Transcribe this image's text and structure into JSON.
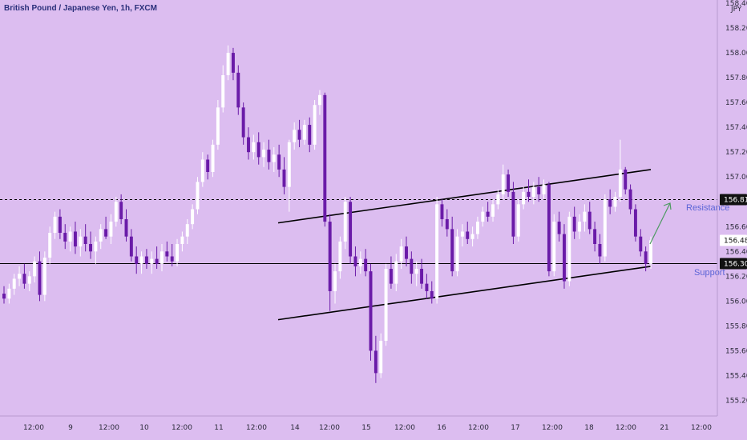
{
  "header": {
    "symbol_title": "British Pound / Japanese Yen, 1h, FXCM",
    "currency": "JPY"
  },
  "colors": {
    "background": "#dcbdf0",
    "bull": "#ffffff",
    "bear": "#6a1ba8",
    "trendline": "#000000",
    "arrow": "#4e9a62",
    "annotation_text": "#5b64d6"
  },
  "chart_data": {
    "type": "candlestick",
    "ylim": [
      155.1,
      158.4
    ],
    "y_ticks": [
      "155.200",
      "155.400",
      "155.600",
      "155.800",
      "156.000",
      "156.200",
      "156.400",
      "156.600",
      "156.800",
      "157.000",
      "157.200",
      "157.400",
      "157.600",
      "157.800",
      "158.000",
      "158.200",
      "158.400"
    ],
    "x_ticks": [
      "12:00",
      "9",
      "12:00",
      "10",
      "12:00",
      "11",
      "12:00",
      "14",
      "12:00",
      "15",
      "12:00",
      "16",
      "12:00",
      "17",
      "12:00",
      "18",
      "12:00",
      "21",
      "12:00"
    ],
    "price_labels": {
      "resistance_level": "156.818",
      "current_price": "156.489",
      "support_level": "156.302"
    },
    "annotations": {
      "resistance": "Resistance",
      "support": "Support"
    },
    "channel": {
      "upper": [
        [
          155.955,
          156.63
        ],
        [
          157.055,
          157.06
        ]
      ],
      "lower": [
        [
          155.955,
          155.85
        ],
        [
          157.055,
          156.28
        ]
      ]
    },
    "levels": {
      "resistance": 156.818,
      "support": 156.302
    },
    "candles": [
      [
        156.06,
        156.12,
        155.98,
        156.02
      ],
      [
        156.02,
        156.14,
        155.98,
        156.1
      ],
      [
        156.1,
        156.22,
        156.05,
        156.18
      ],
      [
        156.18,
        156.28,
        156.12,
        156.22
      ],
      [
        156.22,
        156.3,
        156.1,
        156.14
      ],
      [
        156.14,
        156.24,
        156.08,
        156.2
      ],
      [
        156.2,
        156.36,
        156.15,
        156.32
      ],
      [
        156.32,
        156.4,
        156.0,
        156.05
      ],
      [
        156.05,
        156.4,
        156.0,
        156.35
      ],
      [
        156.35,
        156.6,
        156.3,
        156.55
      ],
      [
        156.55,
        156.72,
        156.5,
        156.68
      ],
      [
        156.68,
        156.74,
        156.5,
        156.55
      ],
      [
        156.55,
        156.62,
        156.42,
        156.48
      ],
      [
        156.48,
        156.6,
        156.4,
        156.56
      ],
      [
        156.56,
        156.64,
        156.38,
        156.44
      ],
      [
        156.44,
        156.58,
        156.36,
        156.52
      ],
      [
        156.52,
        156.62,
        156.4,
        156.46
      ],
      [
        156.46,
        156.56,
        156.34,
        156.4
      ],
      [
        156.4,
        156.52,
        156.3,
        156.48
      ],
      [
        156.48,
        156.62,
        156.42,
        156.58
      ],
      [
        156.58,
        156.68,
        156.5,
        156.52
      ],
      [
        156.52,
        156.7,
        156.46,
        156.64
      ],
      [
        156.64,
        156.84,
        156.6,
        156.8
      ],
      [
        156.8,
        156.86,
        156.62,
        156.66
      ],
      [
        156.66,
        156.74,
        156.48,
        156.52
      ],
      [
        156.52,
        156.58,
        156.32,
        156.36
      ],
      [
        156.36,
        156.44,
        156.22,
        156.3
      ],
      [
        156.3,
        156.4,
        156.22,
        156.36
      ],
      [
        156.36,
        156.42,
        156.26,
        156.3
      ],
      [
        156.3,
        156.4,
        156.22,
        156.34
      ],
      [
        156.34,
        156.44,
        156.26,
        156.3
      ],
      [
        156.3,
        156.46,
        156.24,
        156.4
      ],
      [
        156.4,
        156.48,
        156.32,
        156.36
      ],
      [
        156.36,
        156.46,
        156.28,
        156.32
      ],
      [
        156.32,
        156.5,
        156.28,
        156.46
      ],
      [
        156.46,
        156.56,
        156.4,
        156.52
      ],
      [
        156.52,
        156.66,
        156.46,
        156.62
      ],
      [
        156.62,
        156.78,
        156.58,
        156.74
      ],
      [
        156.74,
        157.0,
        156.7,
        156.96
      ],
      [
        156.96,
        157.2,
        156.92,
        157.14
      ],
      [
        157.14,
        157.18,
        156.98,
        157.04
      ],
      [
        157.04,
        157.3,
        157.0,
        157.26
      ],
      [
        157.26,
        157.62,
        157.22,
        157.56
      ],
      [
        157.56,
        157.9,
        157.52,
        157.82
      ],
      [
        157.82,
        158.06,
        157.78,
        158.0
      ],
      [
        158.0,
        158.04,
        157.78,
        157.84
      ],
      [
        157.84,
        157.9,
        157.5,
        157.56
      ],
      [
        157.56,
        157.6,
        157.26,
        157.32
      ],
      [
        157.32,
        157.4,
        157.14,
        157.2
      ],
      [
        157.2,
        157.34,
        157.14,
        157.28
      ],
      [
        157.28,
        157.36,
        157.1,
        157.16
      ],
      [
        157.16,
        157.28,
        157.08,
        157.22
      ],
      [
        157.22,
        157.3,
        157.06,
        157.12
      ],
      [
        157.12,
        157.24,
        157.04,
        157.18
      ],
      [
        157.18,
        157.26,
        157.0,
        157.06
      ],
      [
        157.06,
        157.16,
        156.86,
        156.92
      ],
      [
        156.92,
        157.3,
        156.72,
        157.28
      ],
      [
        157.28,
        157.44,
        157.22,
        157.38
      ],
      [
        157.38,
        157.46,
        157.24,
        157.3
      ],
      [
        157.3,
        157.46,
        157.26,
        157.42
      ],
      [
        157.42,
        157.48,
        157.2,
        157.26
      ],
      [
        157.26,
        157.62,
        157.22,
        157.58
      ],
      [
        157.58,
        157.7,
        157.5,
        157.66
      ],
      [
        157.66,
        157.68,
        156.6,
        156.64
      ],
      [
        156.64,
        156.7,
        155.92,
        156.08
      ],
      [
        156.08,
        156.3,
        155.98,
        156.24
      ],
      [
        156.24,
        156.52,
        156.18,
        156.48
      ],
      [
        156.48,
        156.84,
        156.42,
        156.8
      ],
      [
        156.8,
        156.84,
        156.3,
        156.36
      ],
      [
        156.36,
        156.44,
        156.2,
        156.28
      ],
      [
        156.28,
        156.4,
        156.22,
        156.34
      ],
      [
        156.34,
        156.42,
        156.2,
        156.24
      ],
      [
        156.24,
        156.3,
        155.52,
        155.6
      ],
      [
        155.6,
        155.72,
        155.34,
        155.42
      ],
      [
        155.42,
        155.74,
        155.38,
        155.68
      ],
      [
        155.68,
        156.3,
        155.64,
        156.26
      ],
      [
        156.26,
        156.36,
        156.1,
        156.14
      ],
      [
        156.14,
        156.38,
        156.08,
        156.32
      ],
      [
        156.32,
        156.5,
        156.26,
        156.44
      ],
      [
        156.44,
        156.52,
        156.28,
        156.34
      ],
      [
        156.34,
        156.4,
        156.14,
        156.22
      ],
      [
        156.22,
        156.32,
        156.12,
        156.26
      ],
      [
        156.26,
        156.34,
        156.1,
        156.14
      ],
      [
        156.14,
        156.22,
        156.02,
        156.08
      ],
      [
        156.08,
        156.16,
        155.98,
        156.02
      ],
      [
        156.02,
        156.84,
        155.98,
        156.78
      ],
      [
        156.78,
        156.82,
        156.6,
        156.66
      ],
      [
        156.66,
        156.74,
        156.52,
        156.58
      ],
      [
        156.58,
        156.68,
        156.2,
        156.24
      ],
      [
        156.24,
        156.58,
        156.2,
        156.52
      ],
      [
        156.52,
        156.62,
        156.44,
        156.56
      ],
      [
        156.56,
        156.64,
        156.46,
        156.5
      ],
      [
        156.5,
        156.6,
        156.44,
        156.54
      ],
      [
        156.54,
        156.68,
        156.5,
        156.64
      ],
      [
        156.64,
        156.76,
        156.6,
        156.72
      ],
      [
        156.72,
        156.8,
        156.64,
        156.68
      ],
      [
        156.68,
        156.82,
        156.64,
        156.78
      ],
      [
        156.78,
        156.9,
        156.74,
        156.86
      ],
      [
        156.86,
        157.1,
        156.82,
        157.02
      ],
      [
        157.02,
        157.06,
        156.84,
        156.88
      ],
      [
        156.88,
        156.96,
        156.46,
        156.52
      ],
      [
        156.52,
        156.82,
        156.48,
        156.78
      ],
      [
        156.78,
        156.92,
        156.74,
        156.88
      ],
      [
        156.88,
        156.98,
        156.8,
        156.84
      ],
      [
        156.84,
        156.96,
        156.78,
        156.92
      ],
      [
        156.92,
        157.0,
        156.8,
        156.86
      ],
      [
        156.86,
        156.98,
        156.82,
        156.94
      ],
      [
        156.94,
        156.96,
        156.2,
        156.24
      ],
      [
        156.24,
        156.7,
        156.2,
        156.64
      ],
      [
        156.64,
        156.72,
        156.48,
        156.54
      ],
      [
        156.54,
        156.62,
        156.1,
        156.16
      ],
      [
        156.16,
        156.72,
        156.12,
        156.68
      ],
      [
        156.68,
        156.76,
        156.5,
        156.56
      ],
      [
        156.56,
        156.7,
        156.5,
        156.64
      ],
      [
        156.64,
        156.78,
        156.56,
        156.72
      ],
      [
        156.72,
        156.8,
        156.54,
        156.58
      ],
      [
        156.58,
        156.64,
        156.4,
        156.46
      ],
      [
        156.46,
        156.54,
        156.3,
        156.36
      ],
      [
        156.36,
        156.86,
        156.32,
        156.82
      ],
      [
        156.82,
        156.9,
        156.7,
        156.76
      ],
      [
        156.76,
        156.88,
        156.72,
        156.84
      ],
      [
        156.84,
        157.3,
        156.8,
        157.06
      ],
      [
        157.06,
        157.08,
        156.86,
        156.9
      ],
      [
        156.9,
        156.94,
        156.7,
        156.74
      ],
      [
        156.74,
        156.78,
        156.48,
        156.52
      ],
      [
        156.52,
        156.58,
        156.36,
        156.4
      ],
      [
        156.4,
        156.44,
        156.24,
        156.3
      ],
      [
        156.3,
        156.52,
        156.26,
        156.49
      ]
    ]
  }
}
